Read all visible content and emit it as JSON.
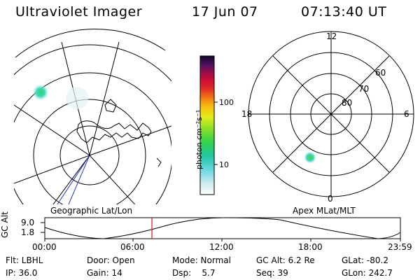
{
  "header": {
    "title": "Ultraviolet Imager",
    "date": "17 Jun 07",
    "time": "07:13:40 UT"
  },
  "left_panel": {
    "label": "Geographic Lat/Lon"
  },
  "right_panel": {
    "label": "Apex MLat/MLT",
    "mlt_labels": [
      "12",
      "18",
      "6",
      "0"
    ],
    "mlat_labels": [
      "60",
      "70",
      "80"
    ]
  },
  "colorbar": {
    "unit_label": "photon cm⁻²s⁻¹",
    "ticks": [
      "100",
      "10"
    ]
  },
  "orbit_plot": {
    "ylabel": "GC Alt",
    "yticks": [
      "9.0",
      "1.8"
    ],
    "xticks": [
      "00:00",
      "06:00",
      "12:00",
      "18:00",
      "23:59"
    ],
    "marker_time_hours": 7.23
  },
  "status": {
    "row1": [
      {
        "text": "Flt: LBHL"
      },
      {
        "text": "Door: Open"
      },
      {
        "text": "Mode: Normal"
      },
      {
        "text": "GC Alt: 6.2 Re"
      },
      {
        "text": "GLat: -80.2"
      }
    ],
    "row2": [
      {
        "text": "IP: 36.0"
      },
      {
        "text": "Gain: 14"
      },
      {
        "text": "Dsp:    5.7"
      },
      {
        "text": "Seq: 39"
      },
      {
        "text": "GLon: 242.7"
      }
    ]
  }
}
